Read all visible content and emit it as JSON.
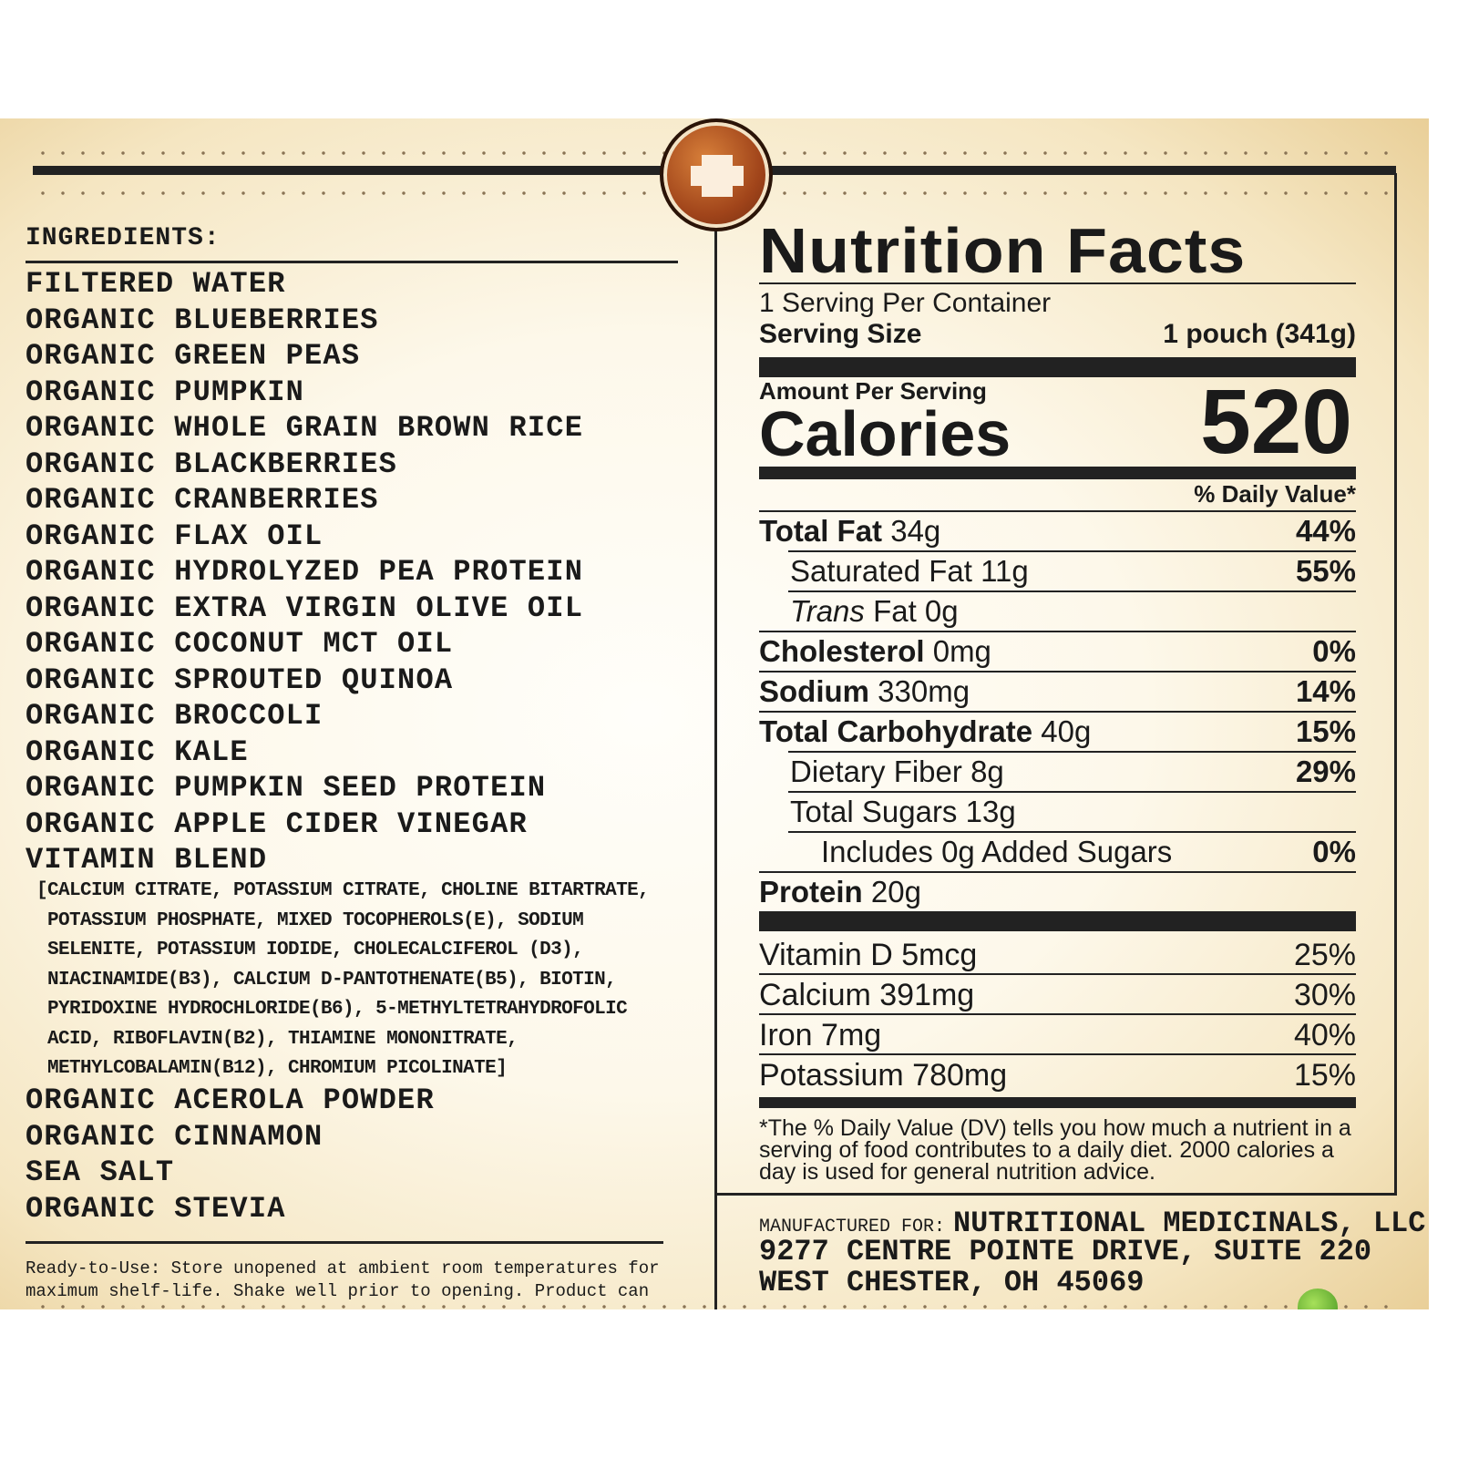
{
  "ingredients": {
    "heading": "INGREDIENTS:",
    "items": [
      "FILTERED WATER",
      "ORGANIC BLUEBERRIES",
      "ORGANIC GREEN PEAS",
      "ORGANIC PUMPKIN",
      "ORGANIC WHOLE GRAIN BROWN RICE",
      "ORGANIC BLACKBERRIES",
      "ORGANIC CRANBERRIES",
      "ORGANIC FLAX OIL",
      "ORGANIC HYDROLYZED PEA PROTEIN",
      "ORGANIC EXTRA VIRGIN OLIVE OIL",
      "ORGANIC COCONUT MCT OIL",
      "ORGANIC SPROUTED QUINOA",
      "ORGANIC BROCCOLI",
      "ORGANIC KALE",
      "ORGANIC PUMPKIN SEED PROTEIN",
      "ORGANIC APPLE CIDER VINEGAR",
      "VITAMIN BLEND"
    ],
    "blend": "[CALCIUM CITRATE, POTASSIUM CITRATE, CHOLINE BITARTRATE,\n POTASSIUM PHOSPHATE, MIXED TOCOPHEROLS(E), SODIUM\n SELENITE, POTASSIUM IODIDE, CHOLECALCIFEROL (D3),\n NIACINAMIDE(B3), CALCIUM D-PANTOTHENATE(B5), BIOTIN,\n PYRIDOXINE HYDROCHLORIDE(B6), 5-METHYLTETRAHYDROFOLIC\n ACID, RIBOFLAVIN(B2), THIAMINE MONONITRATE,\n METHYLCOBALAMIN(B12), CHROMIUM PICOLINATE]",
    "items_after": [
      "ORGANIC ACEROLA POWDER",
      "ORGANIC CINNAMON",
      "SEA SALT",
      "ORGANIC STEVIA"
    ],
    "note": "Ready-to-Use: Store unopened at ambient room temperatures for\nmaximum shelf-life. Shake well prior to opening. Product can"
  },
  "nutrition": {
    "title": "Nutrition Facts",
    "servings": "1 Serving Per Container",
    "serving_size_label": "Serving Size",
    "serving_size": "1 pouch (341g)",
    "amount_per_serving": "Amount Per Serving",
    "calories_label": "Calories",
    "calories": "520",
    "dv_header": "% Daily Value*",
    "rows": [
      {
        "name": "Total Fat",
        "amount": "34g",
        "dv": "44%",
        "bold": true,
        "indent": 0
      },
      {
        "name": "Saturated Fat",
        "amount": "11g",
        "dv": "55%",
        "bold": false,
        "indent": 1
      },
      {
        "name": "Trans",
        "amount": "Fat 0g",
        "dv": "",
        "bold": false,
        "indent": 1,
        "italic": true
      },
      {
        "name": "Cholesterol",
        "amount": "0mg",
        "dv": "0%",
        "bold": true,
        "indent": 0
      },
      {
        "name": "Sodium",
        "amount": "330mg",
        "dv": "14%",
        "bold": true,
        "indent": 0
      },
      {
        "name": "Total Carbohydrate",
        "amount": "40g",
        "dv": "15%",
        "bold": true,
        "indent": 0
      },
      {
        "name": "Dietary Fiber",
        "amount": "8g",
        "dv": "29%",
        "bold": false,
        "indent": 1
      },
      {
        "name": "Total Sugars",
        "amount": "13g",
        "dv": "",
        "bold": false,
        "indent": 1
      },
      {
        "name": "Includes 0g Added Sugars",
        "amount": "",
        "dv": "0%",
        "bold": false,
        "indent": 2
      },
      {
        "name": "Protein",
        "amount": "20g",
        "dv": "",
        "bold": true,
        "indent": 0
      }
    ],
    "vitamins": [
      {
        "name": "Vitamin D 5mcg",
        "dv": "25%"
      },
      {
        "name": "Calcium 391mg",
        "dv": "30%"
      },
      {
        "name": "Iron 7mg",
        "dv": "40%"
      },
      {
        "name": "Potassium 780mg",
        "dv": "15%"
      }
    ],
    "footnote": "*The % Daily Value (DV) tells you how much a nutrient in a serving of food contributes to a daily diet. 2000 calories a day is used for general nutrition advice."
  },
  "manufacturer": {
    "label": "MANUFACTURED FOR:",
    "name": "NUTRITIONAL MEDICINALS, LLC",
    "address1": "9277 CENTRE POINTE DRIVE, SUITE 220",
    "address2": "WEST CHESTER, OH 45069"
  }
}
